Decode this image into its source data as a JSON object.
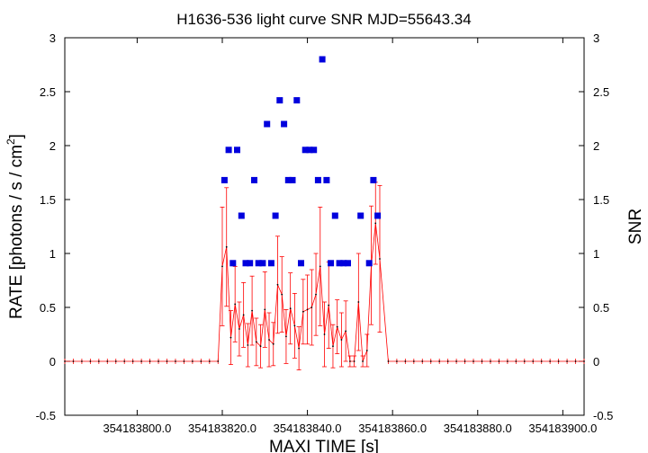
{
  "chart_data": {
    "type": "scatter",
    "title": "H1636-536 light curve  SNR MJD=55643.34",
    "xlabel": "MAXI TIME [s]",
    "ylabel_left": "RATE [photons / s / cm",
    "ylabel_left_sup": "2",
    "ylabel_left_end": "]",
    "ylabel_right": "SNR",
    "xlim": [
      354183783.0,
      354183905.0
    ],
    "ylim": [
      -0.5,
      3.0
    ],
    "x_ticks": [
      354183800,
      354183820,
      354183840,
      354183860,
      354183880,
      354183900
    ],
    "x_tick_labels": [
      "354183800.0",
      "354183820.0",
      "354183840.0",
      "354183860.0",
      "354183880.0",
      "354183900.0"
    ],
    "y_ticks": [
      -0.5,
      0,
      0.5,
      1,
      1.5,
      2,
      2.5,
      3
    ],
    "y_tick_labels": [
      "-0.5",
      "0",
      "0.5",
      "1",
      "1.5",
      "2",
      "2.5",
      "3"
    ],
    "grid": false,
    "legend": "none",
    "series": [
      {
        "type": "line-errorbar",
        "color": "#ff0000",
        "x": [
          354183783.0,
          354183785.0,
          354183787.0,
          354183789.0,
          354183791.0,
          354183793.0,
          354183795.0,
          354183797.0,
          354183799.0,
          354183801.0,
          354183803.0,
          354183805.0,
          354183807.0,
          354183809.0,
          354183811.0,
          354183813.0,
          354183815.0,
          354183817.0,
          354183819.0,
          354183820.0,
          354183821.0,
          354183822.0,
          354183823.0,
          354183824.0,
          354183825.0,
          354183826.0,
          354183827.0,
          354183828.0,
          354183829.0,
          354183830.0,
          354183831.0,
          354183832.0,
          354183833.0,
          354183834.0,
          354183835.0,
          354183836.0,
          354183837.0,
          354183838.0,
          354183839.0,
          354183840.0,
          354183841.0,
          354183842.0,
          354183843.0,
          354183844.0,
          354183845.0,
          354183846.0,
          354183847.0,
          354183848.0,
          354183849.0,
          354183850.0,
          354183851.0,
          354183852.0,
          354183853.0,
          354183854.0,
          354183855.0,
          354183856.0,
          354183857.0,
          354183859.0,
          354183861.0,
          354183863.0,
          354183865.0,
          354183867.0,
          354183869.0,
          354183871.0,
          354183873.0,
          354183875.0,
          354183877.0,
          354183879.0,
          354183881.0,
          354183883.0,
          354183885.0,
          354183887.0,
          354183889.0,
          354183891.0,
          354183893.0,
          354183895.0,
          354183897.0,
          354183899.0,
          354183901.0,
          354183903.0,
          354183905.0
        ],
        "y": [
          0,
          0,
          0,
          0,
          0,
          0,
          0,
          0,
          0,
          0,
          0,
          0,
          0,
          0,
          0,
          0,
          0,
          0,
          0,
          0.88,
          1.06,
          0.22,
          0.53,
          0.3,
          0.43,
          0.15,
          0.47,
          0.18,
          0.14,
          0.48,
          0.2,
          0.16,
          0.71,
          0.62,
          0.23,
          0.49,
          0.33,
          0.12,
          0.46,
          0.48,
          0.5,
          0.62,
          0.88,
          0.25,
          0.52,
          0.14,
          0.32,
          0.2,
          0.28,
          0.0,
          0.0,
          0.55,
          0.0,
          0.1,
          0.89,
          1.28,
          0.95,
          0,
          0,
          0,
          0,
          0,
          0,
          0,
          0,
          0,
          0,
          0,
          0,
          0,
          0,
          0,
          0,
          0,
          0,
          0,
          0,
          0,
          0,
          0,
          0
        ],
        "err": [
          0,
          0,
          0,
          0,
          0,
          0,
          0,
          0,
          0,
          0,
          0,
          0,
          0,
          0,
          0,
          0,
          0,
          0,
          0,
          0.55,
          0.55,
          0.25,
          0.35,
          0.25,
          0.3,
          0.2,
          0.32,
          0.22,
          0.2,
          0.35,
          0.25,
          0.2,
          0.45,
          0.35,
          0.25,
          0.33,
          0.3,
          0.2,
          0.3,
          0.32,
          0.35,
          0.38,
          0.55,
          0.3,
          0.4,
          0.2,
          0.25,
          0.25,
          0.28,
          0.05,
          0.05,
          0.45,
          0.05,
          0.15,
          0.55,
          0.38,
          0.68,
          0,
          0,
          0,
          0,
          0,
          0,
          0,
          0,
          0,
          0,
          0,
          0,
          0,
          0,
          0,
          0,
          0,
          0,
          0,
          0,
          0,
          0,
          0,
          0
        ]
      },
      {
        "type": "scatter",
        "name": "SNR",
        "color": "#0000dd",
        "x": [
          354183820.5,
          354183821.5,
          354183822.5,
          354183823.5,
          354183824.5,
          354183825.5,
          354183826.5,
          354183827.5,
          354183828.5,
          354183829.5,
          354183830.5,
          354183831.5,
          354183832.5,
          354183833.5,
          354183834.5,
          354183835.5,
          354183836.5,
          354183837.5,
          354183838.5,
          354183839.5,
          354183840.5,
          354183841.5,
          354183842.5,
          354183843.5,
          354183844.5,
          354183845.5,
          354183846.5,
          354183847.5,
          354183848.5,
          354183849.5,
          354183852.5,
          354183854.5,
          354183855.5,
          354183856.5
        ],
        "y": [
          1.68,
          1.96,
          0.91,
          1.96,
          1.35,
          0.91,
          0.91,
          1.68,
          0.91,
          0.91,
          2.2,
          0.91,
          1.35,
          2.42,
          2.2,
          1.68,
          1.68,
          2.42,
          0.91,
          1.96,
          1.96,
          1.96,
          1.68,
          2.8,
          1.68,
          0.91,
          1.35,
          0.91,
          0.91,
          0.91,
          1.35,
          0.91,
          1.68,
          1.35
        ]
      }
    ]
  }
}
